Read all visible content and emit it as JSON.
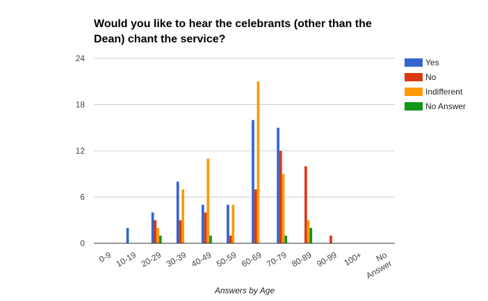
{
  "chart_data": {
    "type": "bar",
    "title_lines": [
      "Would you like to hear the celebrants (other than the",
      "Dean) chant the service?"
    ],
    "xlabel": "Answers by Age",
    "ylabel": "",
    "ylim": [
      0,
      24
    ],
    "yticks": [
      "0",
      "6",
      "12",
      "18",
      "24"
    ],
    "grid": true,
    "legend_position": "right",
    "categories": [
      "0-9",
      "10-19",
      "20-29",
      "30-39",
      "40-49",
      "50-59",
      "60-69",
      "70-79",
      "80-89",
      "90-99",
      "100+",
      "No Answer"
    ],
    "series": [
      {
        "name": "Yes",
        "color": "#3366cc",
        "values": [
          0,
          2,
          4,
          8,
          5,
          5,
          16,
          15,
          0,
          0,
          0,
          0
        ]
      },
      {
        "name": "No",
        "color": "#dc3912",
        "values": [
          0,
          0,
          3,
          3,
          4,
          1,
          7,
          12,
          10,
          1,
          0,
          0
        ]
      },
      {
        "name": "Indifferent",
        "color": "#ff9900",
        "values": [
          0,
          0,
          2,
          7,
          11,
          5,
          21,
          9,
          3,
          0,
          0,
          0
        ]
      },
      {
        "name": "No Answer",
        "color": "#109618",
        "values": [
          0,
          0,
          1,
          0,
          1,
          0,
          0,
          1,
          2,
          0,
          0,
          0
        ]
      }
    ]
  }
}
